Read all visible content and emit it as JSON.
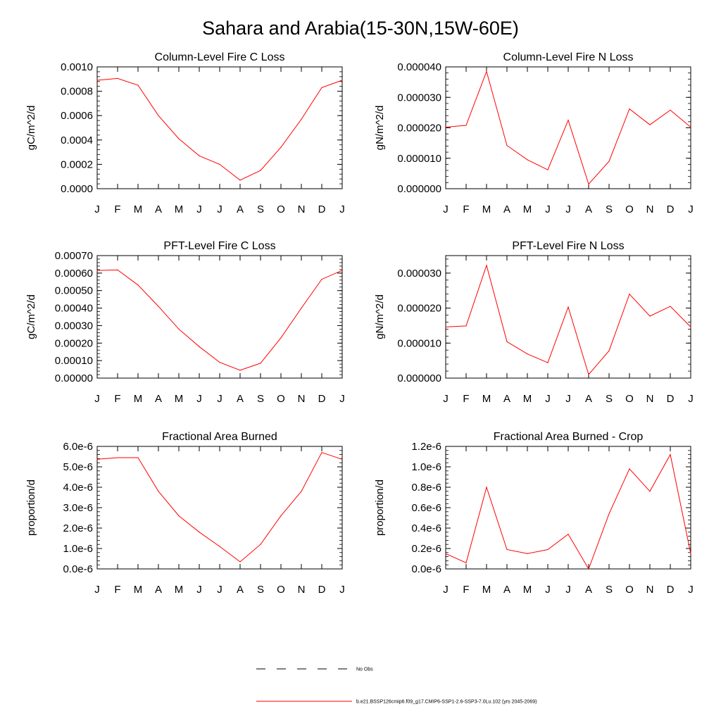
{
  "title": "Sahara and Arabia(15-30N,15W-60E)",
  "months": [
    "J",
    "F",
    "M",
    "A",
    "M",
    "J",
    "J",
    "A",
    "S",
    "O",
    "N",
    "D",
    "J"
  ],
  "line_color": "#ff0000",
  "legend": [
    {
      "label": "No Obs",
      "style": "dashed",
      "color": "#000000"
    },
    {
      "label": "b.e21.BSSP126cmip6.f09_g17.CMIP6-SSP1-2.6-SSP3-7.0Lu.102 (yrs 2045-2069)",
      "style": "solid",
      "color": "#ff0000"
    }
  ],
  "chart_data": [
    {
      "type": "line",
      "title": "Column-Level Fire C Loss",
      "ylabel": "gC/m^2/d",
      "ylim": [
        0,
        0.001
      ],
      "yticks": [
        0,
        0.0002,
        0.0004,
        0.0006,
        0.0008,
        0.001
      ],
      "ytick_labels": [
        "0.0000",
        "0.0002",
        "0.0004",
        "0.0006",
        "0.0008",
        "0.0010"
      ],
      "categories": [
        "J",
        "F",
        "M",
        "A",
        "M",
        "J",
        "J",
        "A",
        "S",
        "O",
        "N",
        "D",
        "J"
      ],
      "values": [
        0.00089,
        0.000905,
        0.00085,
        0.0006,
        0.00041,
        0.00027,
        0.0002,
        7e-05,
        0.00015,
        0.00034,
        0.00057,
        0.00083,
        0.00089
      ]
    },
    {
      "type": "line",
      "title": "Column-Level Fire N Loss",
      "ylabel": "gN/m^2/d",
      "ylim": [
        0,
        4e-05
      ],
      "yticks": [
        0,
        1e-05,
        2e-05,
        3e-05,
        4e-05
      ],
      "ytick_labels": [
        "0.000000",
        "0.000010",
        "0.000020",
        "0.000030",
        "0.000040"
      ],
      "categories": [
        "J",
        "F",
        "M",
        "A",
        "M",
        "J",
        "J",
        "A",
        "S",
        "O",
        "N",
        "D",
        "J"
      ],
      "values": [
        2.02e-05,
        2.08e-05,
        3.85e-05,
        1.42e-05,
        9.5e-06,
        6.2e-06,
        2.25e-05,
        1.5e-06,
        9e-06,
        2.62e-05,
        2.1e-05,
        2.58e-05,
        2.02e-05
      ]
    },
    {
      "type": "line",
      "title": "PFT-Level Fire C Loss",
      "ylabel": "gC/m^2/d",
      "ylim": [
        0,
        0.0007
      ],
      "yticks": [
        0,
        0.0001,
        0.0002,
        0.0003,
        0.0004,
        0.0005,
        0.0006,
        0.0007
      ],
      "ytick_labels": [
        "0.00000",
        "0.00010",
        "0.00020",
        "0.00030",
        "0.00040",
        "0.00050",
        "0.00060",
        "0.00070"
      ],
      "categories": [
        "J",
        "F",
        "M",
        "A",
        "M",
        "J",
        "J",
        "A",
        "S",
        "O",
        "N",
        "D",
        "J"
      ],
      "values": [
        0.000615,
        0.000618,
        0.000532,
        0.00041,
        0.00028,
        0.00018,
        9e-05,
        4.5e-05,
        8.5e-05,
        0.00023,
        0.0004,
        0.000565,
        0.000615
      ]
    },
    {
      "type": "line",
      "title": "PFT-Level Fire N Loss",
      "ylabel": "gN/m^2/d",
      "ylim": [
        0,
        3.5e-05
      ],
      "yticks": [
        0,
        1e-05,
        2e-05,
        3e-05
      ],
      "ytick_labels": [
        "0.000000",
        "0.000010",
        "0.000020",
        "0.000030"
      ],
      "categories": [
        "J",
        "F",
        "M",
        "A",
        "M",
        "J",
        "J",
        "A",
        "S",
        "O",
        "N",
        "D",
        "J"
      ],
      "values": [
        1.46e-05,
        1.49e-05,
        3.22e-05,
        1.04e-05,
        6.9e-06,
        4.4e-06,
        2.03e-05,
        1e-06,
        7.8e-06,
        2.4e-05,
        1.77e-05,
        2.05e-05,
        1.46e-05
      ]
    },
    {
      "type": "line",
      "title": "Fractional Area Burned",
      "ylabel": "proportion/d",
      "ylim": [
        0,
        6e-06
      ],
      "yticks": [
        0,
        1e-06,
        2e-06,
        3e-06,
        4e-06,
        5e-06,
        6e-06
      ],
      "ytick_labels": [
        "0.0e-6",
        "1.0e-6",
        "2.0e-6",
        "3.0e-6",
        "4.0e-6",
        "5.0e-6",
        "6.0e-6"
      ],
      "categories": [
        "J",
        "F",
        "M",
        "A",
        "M",
        "J",
        "J",
        "A",
        "S",
        "O",
        "N",
        "D",
        "J"
      ],
      "values": [
        5.37e-06,
        5.45e-06,
        5.45e-06,
        3.8e-06,
        2.6e-06,
        1.8e-06,
        1.1e-06,
        3.5e-07,
        1.2e-06,
        2.6e-06,
        3.8e-06,
        5.7e-06,
        5.37e-06
      ]
    },
    {
      "type": "line",
      "title": "Fractional Area Burned - Crop",
      "ylabel": "proportion/d",
      "ylim": [
        0,
        1.2e-06
      ],
      "yticks": [
        0,
        2e-07,
        4e-07,
        6e-07,
        8e-07,
        1e-06,
        1.2e-06
      ],
      "ytick_labels": [
        "0.0e-6",
        "0.2e-6",
        "0.4e-6",
        "0.6e-6",
        "0.8e-6",
        "1.0e-6",
        "1.2e-6"
      ],
      "categories": [
        "J",
        "F",
        "M",
        "A",
        "M",
        "J",
        "J",
        "A",
        "S",
        "O",
        "N",
        "D",
        "J"
      ],
      "values": [
        1.5e-07,
        6e-08,
        8e-07,
        1.9e-07,
        1.5e-07,
        1.9e-07,
        3.4e-07,
        0.0,
        5.4e-07,
        9.8e-07,
        7.6e-07,
        1.12e-06,
        1.5e-07
      ]
    }
  ]
}
